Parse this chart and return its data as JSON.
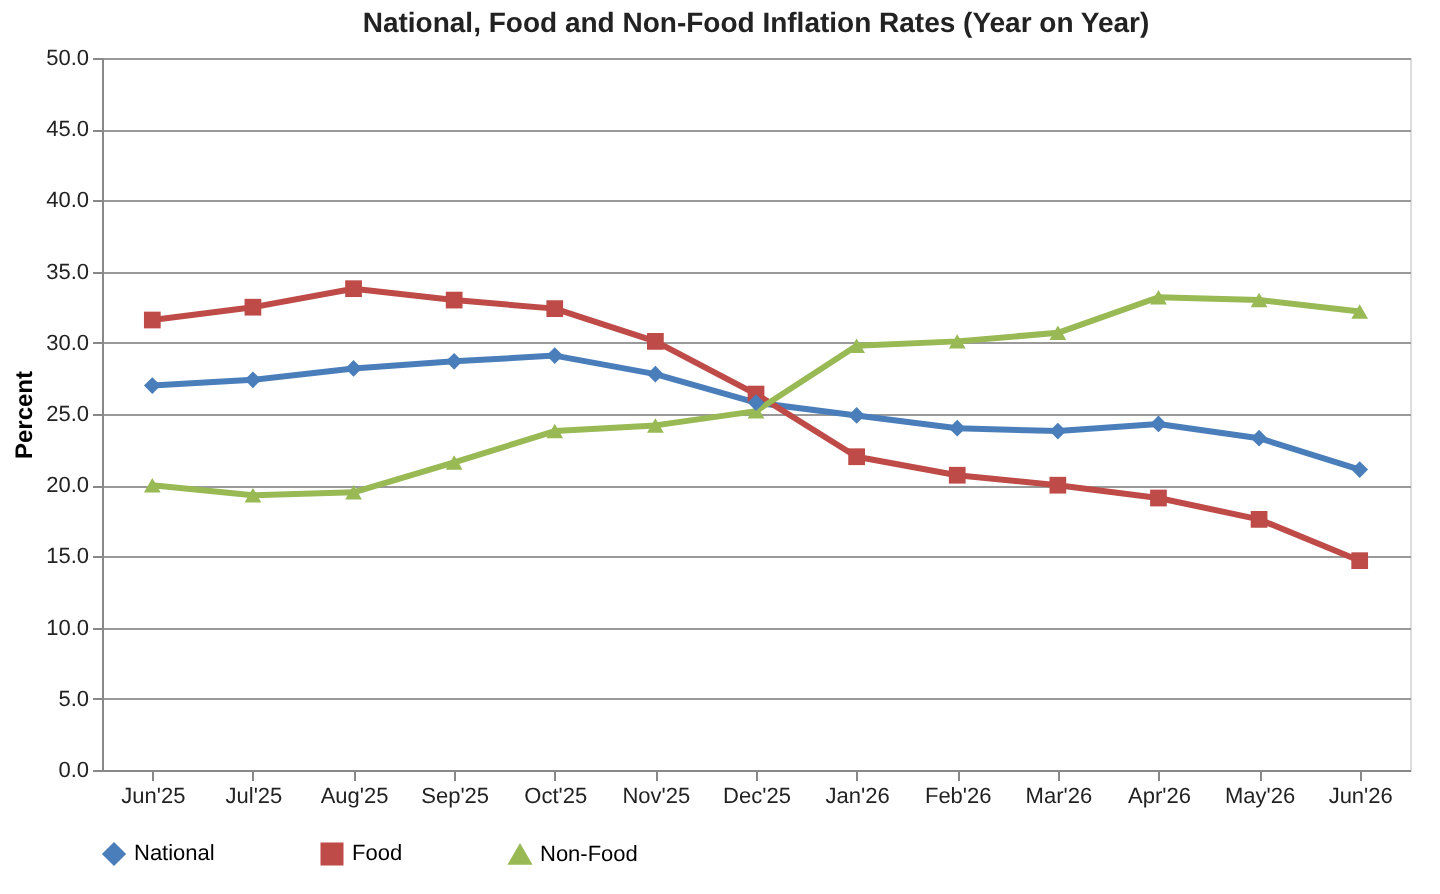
{
  "chart_data": {
    "type": "line",
    "title": "National, Food and Non-Food Inflation Rates (Year on Year)",
    "ylabel": "Percent",
    "categories": [
      "Jun'25",
      "Jul'25",
      "Aug'25",
      "Sep'25",
      "Oct'25",
      "Nov'25",
      "Dec'25",
      "Jan'26",
      "Feb'26",
      "Mar'26",
      "Apr'26",
      "May'26",
      "Jun'26"
    ],
    "series": [
      {
        "name": "National",
        "color": "#4a7ebb",
        "marker": "diamond",
        "values": [
          27.0,
          27.4,
          28.2,
          28.7,
          29.1,
          27.8,
          25.8,
          24.9,
          24.0,
          23.8,
          24.3,
          23.3,
          21.1
        ]
      },
      {
        "name": "Food",
        "color": "#be4b48",
        "marker": "square",
        "values": [
          31.6,
          32.5,
          33.8,
          33.0,
          32.4,
          30.1,
          26.4,
          22.0,
          20.7,
          20.0,
          19.1,
          17.6,
          14.7
        ]
      },
      {
        "name": "Non-Food",
        "color": "#98b954",
        "marker": "triangle",
        "values": [
          20.0,
          19.3,
          19.5,
          21.6,
          23.8,
          24.2,
          25.2,
          29.8,
          30.1,
          30.7,
          33.2,
          33.0,
          32.2
        ]
      }
    ],
    "ylim": [
      0,
      50
    ],
    "yticks": [
      {
        "value": 0,
        "label": "0.0"
      },
      {
        "value": 5,
        "label": "5.0"
      },
      {
        "value": 10,
        "label": "10.0"
      },
      {
        "value": 15,
        "label": "15.0"
      },
      {
        "value": 20,
        "label": "20.0"
      },
      {
        "value": 25,
        "label": "25.0"
      },
      {
        "value": 30,
        "label": "30.0"
      },
      {
        "value": 35,
        "label": "35.0"
      },
      {
        "value": 40,
        "label": "40.0"
      },
      {
        "value": 45,
        "label": "45.0"
      },
      {
        "value": 50,
        "label": "50.0"
      }
    ],
    "grid": "y",
    "legend": "bottom",
    "line_style": "solid"
  }
}
